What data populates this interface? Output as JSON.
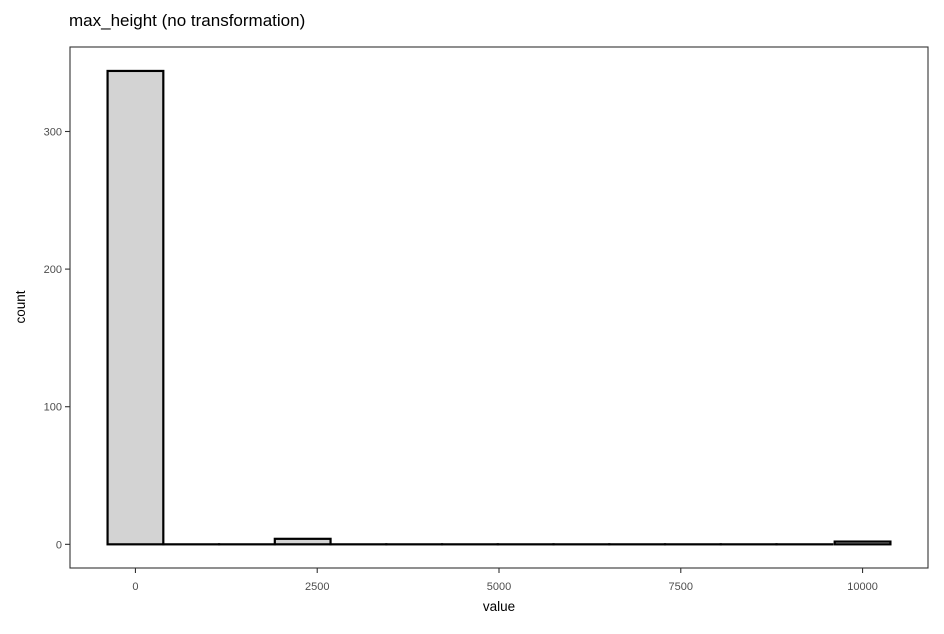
{
  "chart_data": {
    "type": "bar",
    "title": "max_height (no transformation)",
    "xlabel": "value",
    "ylabel": "count",
    "x_ticks": [
      0,
      2500,
      5000,
      7500,
      10000
    ],
    "x_tick_labels": [
      "0",
      "2500",
      "5000",
      "7500",
      "10000"
    ],
    "y_ticks": [
      0,
      100,
      200,
      300
    ],
    "y_tick_labels": [
      "0",
      "100",
      "200",
      "300"
    ],
    "xlim": [
      -900,
      10900
    ],
    "ylim": [
      -17.2,
      361.4
    ],
    "grid": false,
    "bin_width": 766.6667,
    "bins": [
      {
        "x": 0,
        "count": 344
      },
      {
        "x": 766.6667,
        "count": 0
      },
      {
        "x": 1533.3333,
        "count": 0
      },
      {
        "x": 2300,
        "count": 4
      },
      {
        "x": 3066.6667,
        "count": 0
      },
      {
        "x": 3833.3333,
        "count": 0
      },
      {
        "x": 4600,
        "count": 0
      },
      {
        "x": 5366.6667,
        "count": 0
      },
      {
        "x": 6133.3333,
        "count": 0
      },
      {
        "x": 6900,
        "count": 0
      },
      {
        "x": 7666.6667,
        "count": 0
      },
      {
        "x": 8433.3333,
        "count": 0
      },
      {
        "x": 9200,
        "count": 0
      },
      {
        "x": 10000,
        "count": 2
      }
    ],
    "colors": {
      "fill": "#d3d3d3",
      "stroke": "#000000",
      "axis_text": "#4d4d4d",
      "panel_border": "#333333"
    }
  }
}
